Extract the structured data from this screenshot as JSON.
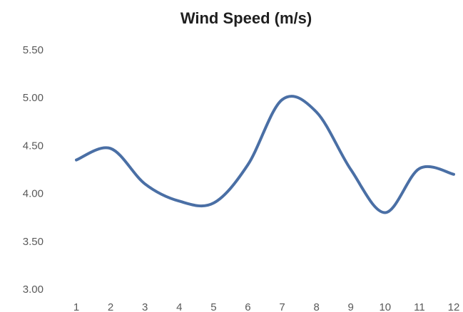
{
  "chart_data": {
    "type": "line",
    "title": "Wind Speed (m/s)",
    "xlabel": "",
    "ylabel": "",
    "categories": [
      "1",
      "2",
      "3",
      "4",
      "5",
      "6",
      "7",
      "8",
      "9",
      "10",
      "11",
      "12"
    ],
    "series": [
      {
        "values": [
          4.35,
          4.47,
          4.1,
          3.92,
          3.9,
          4.3,
          4.98,
          4.85,
          4.25,
          3.8,
          4.26,
          4.2
        ]
      }
    ],
    "ylim": [
      3.0,
      5.5
    ],
    "yticks": [
      "3.00",
      "3.50",
      "4.00",
      "4.50",
      "5.00",
      "5.50"
    ],
    "grid": false,
    "legend": "none",
    "line_color": "#4a6fa5"
  }
}
